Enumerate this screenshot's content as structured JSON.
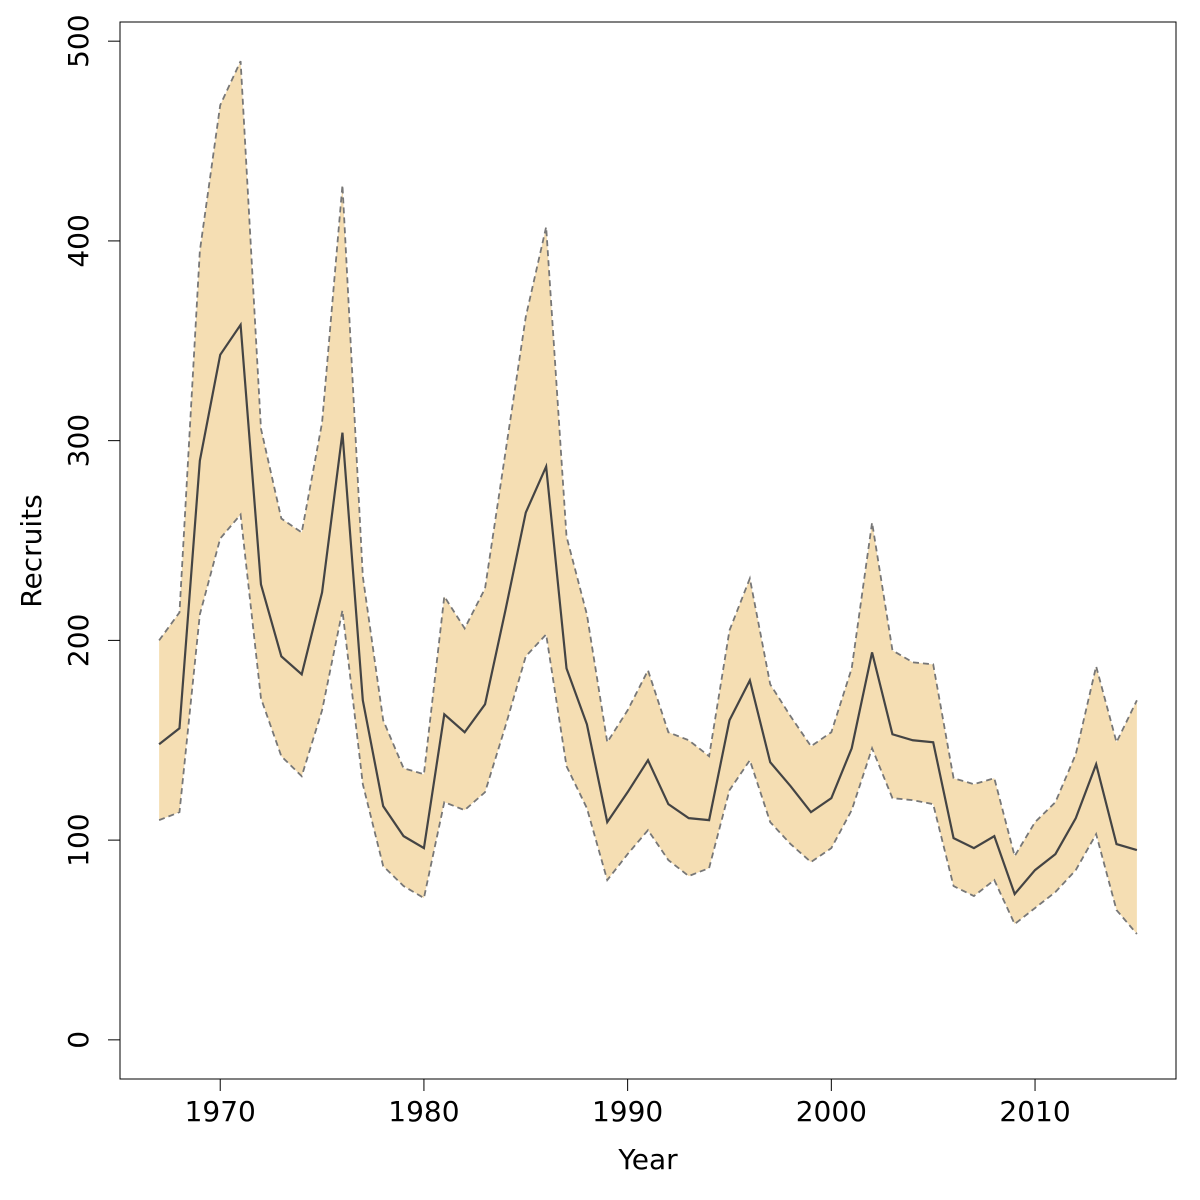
{
  "chart_data": {
    "type": "line",
    "xlabel": "Year",
    "ylabel": "Recruits",
    "x": [
      1967,
      1968,
      1969,
      1970,
      1971,
      1972,
      1973,
      1974,
      1975,
      1976,
      1977,
      1978,
      1979,
      1980,
      1981,
      1982,
      1983,
      1984,
      1985,
      1986,
      1987,
      1988,
      1989,
      1990,
      1991,
      1992,
      1993,
      1994,
      1995,
      1996,
      1997,
      1998,
      1999,
      2000,
      2001,
      2002,
      2003,
      2004,
      2005,
      2006,
      2007,
      2008,
      2009,
      2010,
      2011,
      2012,
      2013,
      2014,
      2015
    ],
    "values": [
      148,
      156,
      290,
      343,
      358,
      228,
      192,
      183,
      224,
      304,
      170,
      117,
      102,
      96,
      163,
      154,
      168,
      215,
      264,
      287,
      186,
      158,
      109,
      124,
      140,
      118,
      111,
      110,
      160,
      180,
      139,
      127,
      114,
      121,
      146,
      194,
      153,
      150,
      149,
      101,
      96,
      102,
      73,
      85,
      93,
      111,
      138,
      98,
      95
    ],
    "lower": [
      110,
      114,
      213,
      251,
      263,
      171,
      142,
      132,
      165,
      215,
      128,
      87,
      77,
      71,
      119,
      115,
      124,
      157,
      192,
      203,
      137,
      116,
      80,
      93,
      105,
      90,
      82,
      86,
      125,
      140,
      109,
      98,
      89,
      96,
      115,
      146,
      121,
      120,
      118,
      77,
      72,
      80,
      58,
      66,
      74,
      85,
      103,
      65,
      53
    ],
    "upper": [
      200,
      214,
      395,
      468,
      490,
      306,
      261,
      254,
      309,
      428,
      232,
      160,
      136,
      133,
      222,
      206,
      226,
      294,
      362,
      407,
      252,
      213,
      149,
      165,
      185,
      154,
      150,
      142,
      205,
      231,
      178,
      162,
      147,
      154,
      186,
      259,
      195,
      189,
      188,
      131,
      128,
      131,
      92,
      109,
      119,
      143,
      187,
      149,
      170
    ],
    "color": "#444444",
    "band_color": "#f5deb3",
    "bound_color": "#777777",
    "xlim": [
      1965.08,
      2016.92
    ],
    "ylim": [
      -19.6,
      509.6
    ],
    "xticks": [
      1970,
      1980,
      1990,
      2000,
      2010
    ],
    "yticks": [
      0,
      100,
      200,
      300,
      400,
      500
    ]
  }
}
